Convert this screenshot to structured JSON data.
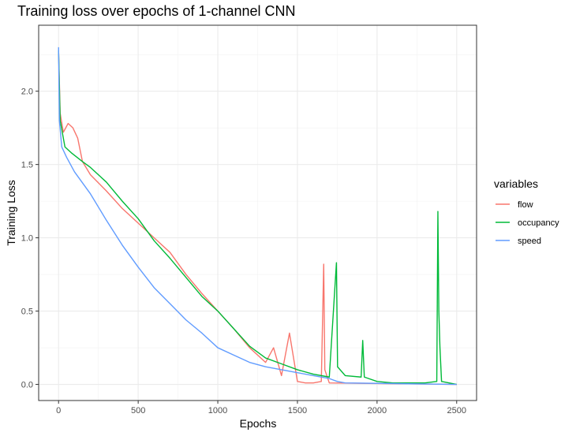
{
  "chart_data": {
    "type": "line",
    "title": "Training loss over epochs of 1-channel CNN",
    "xlabel": "Epochs",
    "ylabel": "Training Loss",
    "xlim": [
      -125,
      2625
    ],
    "ylim": [
      -0.11,
      2.45
    ],
    "x_ticks": [
      0,
      500,
      1000,
      1500,
      2000,
      2500
    ],
    "x_tick_labels": [
      "0",
      "500",
      "1000",
      "1500",
      "2000",
      "2500"
    ],
    "y_ticks": [
      0.0,
      0.5,
      1.0,
      1.5,
      2.0
    ],
    "y_tick_labels": [
      "0.0",
      "0.5",
      "1.0",
      "1.5",
      "2.0"
    ],
    "grid": true,
    "legend": {
      "title": "variables",
      "position": "right"
    },
    "series": [
      {
        "name": "flow",
        "color": "#F8766D",
        "points": [
          [
            0,
            2.28
          ],
          [
            10,
            1.85
          ],
          [
            30,
            1.72
          ],
          [
            60,
            1.78
          ],
          [
            90,
            1.75
          ],
          [
            120,
            1.68
          ],
          [
            150,
            1.52
          ],
          [
            200,
            1.43
          ],
          [
            300,
            1.32
          ],
          [
            400,
            1.2
          ],
          [
            500,
            1.1
          ],
          [
            600,
            1.0
          ],
          [
            700,
            0.9
          ],
          [
            800,
            0.75
          ],
          [
            900,
            0.62
          ],
          [
            1000,
            0.5
          ],
          [
            1100,
            0.38
          ],
          [
            1200,
            0.25
          ],
          [
            1300,
            0.15
          ],
          [
            1350,
            0.25
          ],
          [
            1400,
            0.06
          ],
          [
            1450,
            0.35
          ],
          [
            1500,
            0.02
          ],
          [
            1550,
            0.01
          ],
          [
            1600,
            0.01
          ],
          [
            1650,
            0.02
          ],
          [
            1665,
            0.82
          ],
          [
            1672,
            0.1
          ],
          [
            1700,
            0.01
          ],
          [
            2500,
            0.0
          ]
        ]
      },
      {
        "name": "occupancy",
        "color": "#00BA38",
        "points": [
          [
            0,
            2.28
          ],
          [
            10,
            1.8
          ],
          [
            40,
            1.62
          ],
          [
            80,
            1.58
          ],
          [
            150,
            1.52
          ],
          [
            200,
            1.48
          ],
          [
            300,
            1.38
          ],
          [
            400,
            1.25
          ],
          [
            500,
            1.13
          ],
          [
            600,
            0.98
          ],
          [
            700,
            0.86
          ],
          [
            800,
            0.73
          ],
          [
            900,
            0.6
          ],
          [
            1000,
            0.5
          ],
          [
            1100,
            0.38
          ],
          [
            1200,
            0.26
          ],
          [
            1300,
            0.18
          ],
          [
            1400,
            0.14
          ],
          [
            1500,
            0.1
          ],
          [
            1600,
            0.07
          ],
          [
            1700,
            0.05
          ],
          [
            1745,
            0.83
          ],
          [
            1752,
            0.12
          ],
          [
            1800,
            0.06
          ],
          [
            1900,
            0.05
          ],
          [
            1910,
            0.3
          ],
          [
            1920,
            0.05
          ],
          [
            2000,
            0.02
          ],
          [
            2100,
            0.01
          ],
          [
            2200,
            0.01
          ],
          [
            2300,
            0.01
          ],
          [
            2375,
            0.02
          ],
          [
            2382,
            1.18
          ],
          [
            2388,
            0.5
          ],
          [
            2395,
            0.25
          ],
          [
            2405,
            0.02
          ],
          [
            2500,
            0.0
          ]
        ]
      },
      {
        "name": "speed",
        "color": "#619CFF",
        "points": [
          [
            0,
            2.3
          ],
          [
            5,
            1.8
          ],
          [
            20,
            1.62
          ],
          [
            50,
            1.55
          ],
          [
            100,
            1.45
          ],
          [
            200,
            1.3
          ],
          [
            300,
            1.12
          ],
          [
            400,
            0.95
          ],
          [
            500,
            0.8
          ],
          [
            600,
            0.66
          ],
          [
            700,
            0.55
          ],
          [
            800,
            0.44
          ],
          [
            900,
            0.35
          ],
          [
            1000,
            0.25
          ],
          [
            1100,
            0.2
          ],
          [
            1200,
            0.15
          ],
          [
            1300,
            0.12
          ],
          [
            1400,
            0.1
          ],
          [
            1500,
            0.08
          ],
          [
            1600,
            0.06
          ],
          [
            1700,
            0.04
          ],
          [
            1750,
            0.02
          ],
          [
            1800,
            0.01
          ],
          [
            2500,
            0.0
          ]
        ]
      }
    ]
  }
}
